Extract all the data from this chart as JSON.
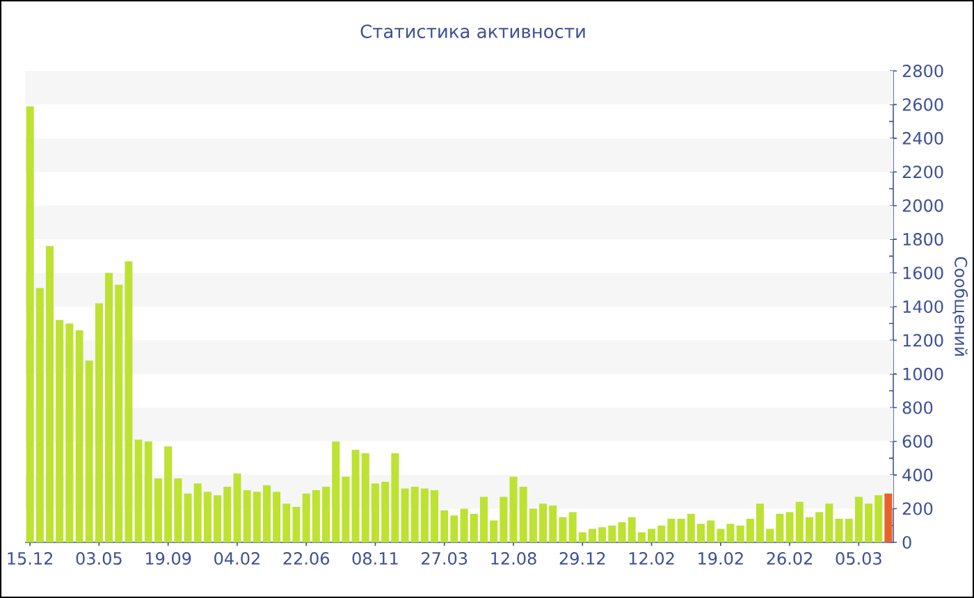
{
  "chart_data": {
    "type": "bar",
    "title": "Статистика активности",
    "ylabel": "Сообщений",
    "categories": [
      "15.12",
      null,
      null,
      null,
      null,
      null,
      null,
      "03.05",
      null,
      null,
      null,
      null,
      null,
      null,
      "19.09",
      null,
      null,
      null,
      null,
      null,
      null,
      "04.02",
      null,
      null,
      null,
      null,
      null,
      null,
      "22.06",
      null,
      null,
      null,
      null,
      null,
      null,
      "08.11",
      null,
      null,
      null,
      null,
      null,
      null,
      "27.03",
      null,
      null,
      null,
      null,
      null,
      null,
      "12.08",
      null,
      null,
      null,
      null,
      null,
      null,
      "29.12",
      null,
      null,
      null,
      null,
      null,
      null,
      "12.02",
      null,
      null,
      null,
      null,
      null,
      null,
      "19.02",
      null,
      null,
      null,
      null,
      null,
      null,
      "26.02",
      null,
      null,
      null,
      null,
      null,
      null,
      "05.03",
      null,
      null,
      null
    ],
    "values": [
      2590,
      1510,
      1760,
      1320,
      1300,
      1260,
      1080,
      1420,
      1600,
      1530,
      1670,
      610,
      600,
      380,
      570,
      380,
      290,
      350,
      300,
      280,
      330,
      410,
      310,
      300,
      340,
      300,
      230,
      210,
      290,
      310,
      330,
      600,
      390,
      550,
      530,
      350,
      360,
      530,
      320,
      330,
      320,
      310,
      190,
      160,
      200,
      170,
      270,
      130,
      270,
      390,
      330,
      200,
      230,
      220,
      150,
      180,
      60,
      80,
      90,
      100,
      120,
      150,
      60,
      80,
      100,
      140,
      140,
      170,
      110,
      130,
      80,
      110,
      100,
      140,
      230,
      80,
      170,
      180,
      240,
      150,
      180,
      230,
      140,
      140,
      270,
      230,
      280,
      290
    ],
    "colors": [
      "#bde232",
      "#bde232",
      "#bde232",
      "#bde232",
      "#bde232",
      "#bde232",
      "#bde232",
      "#bde232",
      "#bde232",
      "#bde232",
      "#bde232",
      "#bde232",
      "#bde232",
      "#bde232",
      "#bde232",
      "#bde232",
      "#bde232",
      "#bde232",
      "#bde232",
      "#bde232",
      "#bde232",
      "#bde232",
      "#bde232",
      "#bde232",
      "#bde232",
      "#bde232",
      "#bde232",
      "#bde232",
      "#bde232",
      "#bde232",
      "#bde232",
      "#bde232",
      "#bde232",
      "#bde232",
      "#bde232",
      "#bde232",
      "#bde232",
      "#bde232",
      "#bde232",
      "#bde232",
      "#bde232",
      "#bde232",
      "#bde232",
      "#bde232",
      "#bde232",
      "#bde232",
      "#bde232",
      "#bde232",
      "#bde232",
      "#bde232",
      "#bde232",
      "#bde232",
      "#bde232",
      "#bde232",
      "#bde232",
      "#bde232",
      "#bde232",
      "#bde232",
      "#bde232",
      "#bde232",
      "#bde232",
      "#bde232",
      "#bde232",
      "#bde232",
      "#bde232",
      "#bde232",
      "#bde232",
      "#bde232",
      "#bde232",
      "#bde232",
      "#bde232",
      "#bde232",
      "#bde232",
      "#bde232",
      "#bde232",
      "#bde232",
      "#bde232",
      "#bde232",
      "#bde232",
      "#bde232",
      "#bde232",
      "#bde232",
      "#bde232",
      "#bde232",
      "#bde232",
      "#bde232",
      "#bde232",
      "#e8622c"
    ],
    "ylim": [
      0,
      2800
    ],
    "yticks": [
      0,
      {
        "value": 100,
        "label": null
      },
      200,
      {
        "value": 300,
        "label": null
      },
      400,
      {
        "value": 500,
        "label": null
      },
      600,
      {
        "value": 700,
        "label": null
      },
      800,
      {
        "value": 900,
        "label": null
      },
      1000,
      {
        "value": 1100,
        "label": null
      },
      1200,
      {
        "value": 1300,
        "label": null
      },
      1400,
      {
        "value": 1500,
        "label": null
      },
      1600,
      {
        "value": 1700,
        "label": null
      },
      1800,
      {
        "value": 1900,
        "label": null
      },
      2000,
      {
        "value": 2100,
        "label": null
      },
      2200,
      {
        "value": 2300,
        "label": null
      },
      2400,
      {
        "value": 2500,
        "label": null
      },
      2600,
      {
        "value": 2700,
        "label": null
      },
      2800
    ],
    "bands": [
      {
        "axis": "y",
        "from": 200,
        "to": 400,
        "color": "#f6f6f6"
      },
      {
        "axis": "y",
        "from": 600,
        "to": 800,
        "color": "#f6f6f6"
      },
      {
        "axis": "y",
        "from": 1000,
        "to": 1200,
        "color": "#f6f6f6"
      },
      {
        "axis": "y",
        "from": 1400,
        "to": 1600,
        "color": "#f6f6f6"
      },
      {
        "axis": "y",
        "from": 1800,
        "to": 2000,
        "color": "#f6f6f6"
      },
      {
        "axis": "y",
        "from": 2200,
        "to": 2400,
        "color": "#f6f6f6"
      },
      {
        "axis": "y",
        "from": 2600,
        "to": 2800,
        "color": "#f6f6f6"
      }
    ]
  }
}
